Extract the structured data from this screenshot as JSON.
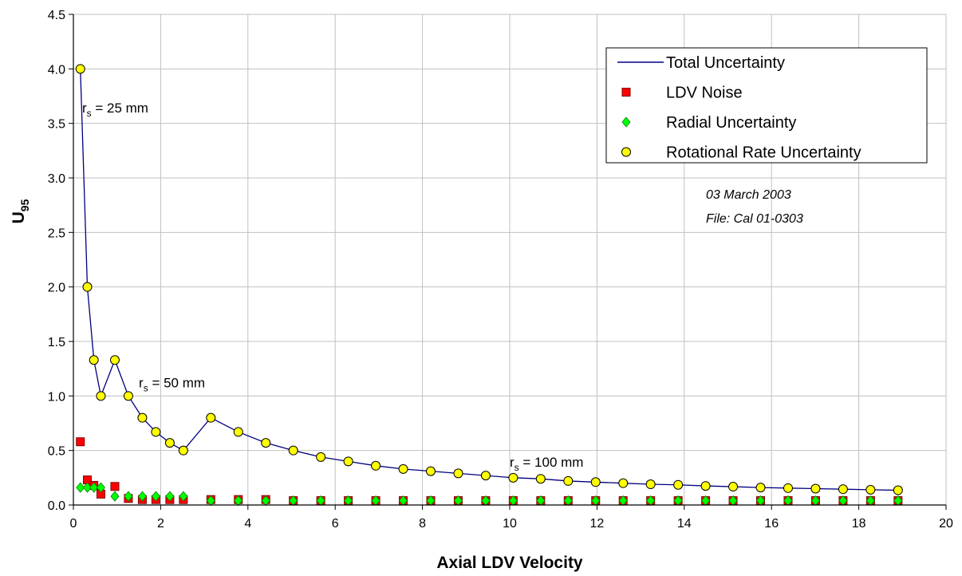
{
  "chart_data": {
    "type": "scatter",
    "xlabel": "Axial LDV Velocity",
    "ylabel": "U",
    "ylabel_sub": "95",
    "xlim": [
      0,
      20
    ],
    "ylim": [
      0,
      4.5
    ],
    "xticks": [
      "0",
      "2",
      "4",
      "6",
      "8",
      "10",
      "12",
      "14",
      "16",
      "18",
      "20"
    ],
    "yticks": [
      "0.0",
      "0.5",
      "1.0",
      "1.5",
      "2.0",
      "2.5",
      "3.0",
      "3.5",
      "4.0",
      "4.5"
    ],
    "grid": true,
    "legend_position": "top-right",
    "x": [
      0.16,
      0.32,
      0.47,
      0.63,
      0.95,
      1.26,
      1.58,
      1.89,
      2.21,
      2.52,
      3.15,
      3.78,
      4.41,
      5.04,
      5.67,
      6.3,
      6.93,
      7.56,
      8.19,
      8.82,
      9.45,
      10.08,
      10.71,
      11.34,
      11.97,
      12.6,
      13.23,
      13.86,
      14.49,
      15.12,
      15.75,
      16.38,
      17.01,
      17.64,
      18.27,
      18.9
    ],
    "series": [
      {
        "name": "Total Uncertainty",
        "style": "line",
        "color": "#000080",
        "values": [
          4.0,
          2.0,
          1.33,
          1.0,
          1.33,
          1.0,
          0.8,
          0.67,
          0.57,
          0.5,
          0.8,
          0.67,
          0.57,
          0.5,
          0.44,
          0.4,
          0.36,
          0.33,
          0.31,
          0.29,
          0.27,
          0.25,
          0.24,
          0.22,
          0.21,
          0.2,
          0.19,
          0.185,
          0.175,
          0.168,
          0.16,
          0.155,
          0.15,
          0.145,
          0.14,
          0.135
        ]
      },
      {
        "name": "LDV Noise",
        "style": "square",
        "color": "#ff0000",
        "values": [
          0.58,
          0.23,
          0.18,
          0.1,
          0.17,
          0.06,
          0.05,
          0.05,
          0.05,
          0.05,
          0.05,
          0.05,
          0.05,
          0.04,
          0.04,
          0.04,
          0.04,
          0.04,
          0.04,
          0.04,
          0.04,
          0.04,
          0.04,
          0.04,
          0.04,
          0.04,
          0.04,
          0.04,
          0.04,
          0.04,
          0.04,
          0.04,
          0.04,
          0.04,
          0.04,
          0.04
        ]
      },
      {
        "name": "Radial Uncertainty",
        "style": "diamond",
        "color": "#00ff00",
        "values": [
          0.16,
          0.16,
          0.16,
          0.16,
          0.08,
          0.08,
          0.08,
          0.08,
          0.08,
          0.08,
          0.04,
          0.04,
          0.04,
          0.04,
          0.04,
          0.04,
          0.04,
          0.04,
          0.04,
          0.04,
          0.04,
          0.04,
          0.04,
          0.04,
          0.04,
          0.04,
          0.04,
          0.04,
          0.04,
          0.04,
          0.04,
          0.04,
          0.04,
          0.04,
          0.04,
          0.04
        ]
      },
      {
        "name": "Rotational Rate Uncertainty",
        "style": "circle",
        "color": "#ffff00",
        "values": [
          4.0,
          2.0,
          1.33,
          1.0,
          1.33,
          1.0,
          0.8,
          0.67,
          0.57,
          0.5,
          0.8,
          0.67,
          0.57,
          0.5,
          0.44,
          0.4,
          0.36,
          0.33,
          0.31,
          0.29,
          0.27,
          0.25,
          0.24,
          0.22,
          0.21,
          0.2,
          0.19,
          0.185,
          0.175,
          0.168,
          0.16,
          0.155,
          0.15,
          0.145,
          0.14,
          0.135
        ]
      }
    ],
    "annotations": [
      {
        "main": "r",
        "sub": "s",
        "rest": " = 25 mm",
        "x": 0.2,
        "y": 3.6
      },
      {
        "main": "r",
        "sub": "s",
        "rest": " = 50 mm",
        "x": 1.5,
        "y": 1.08
      },
      {
        "main": "r",
        "sub": "s",
        "rest": " = 100 mm",
        "x": 10.0,
        "y": 0.35
      }
    ],
    "info": [
      "03 March 2003",
      "File: Cal 01-0303"
    ]
  }
}
